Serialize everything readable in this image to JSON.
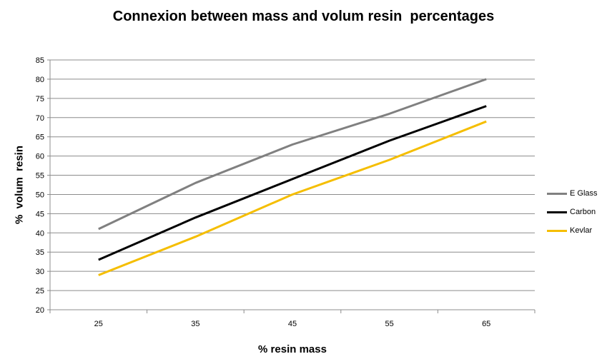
{
  "chart_data": {
    "type": "line",
    "title": "Connexion between mass and volum resin  percentages",
    "xlabel": "% resin mass",
    "ylabel": "%  volum  resin",
    "categories": [
      "25",
      "35",
      "45",
      "55",
      "65"
    ],
    "ylim": [
      20,
      85
    ],
    "ystep": 5,
    "grid": true,
    "legend_position": "right",
    "series": [
      {
        "name": "E Glass",
        "color": "#808080",
        "values": [
          41,
          53,
          63,
          71,
          80
        ]
      },
      {
        "name": "Carbon",
        "color": "#000000",
        "values": [
          33,
          44,
          54,
          64,
          73
        ]
      },
      {
        "name": "Kevlar",
        "color": "#f5be00",
        "values": [
          29,
          39,
          50,
          59,
          69
        ]
      }
    ]
  }
}
